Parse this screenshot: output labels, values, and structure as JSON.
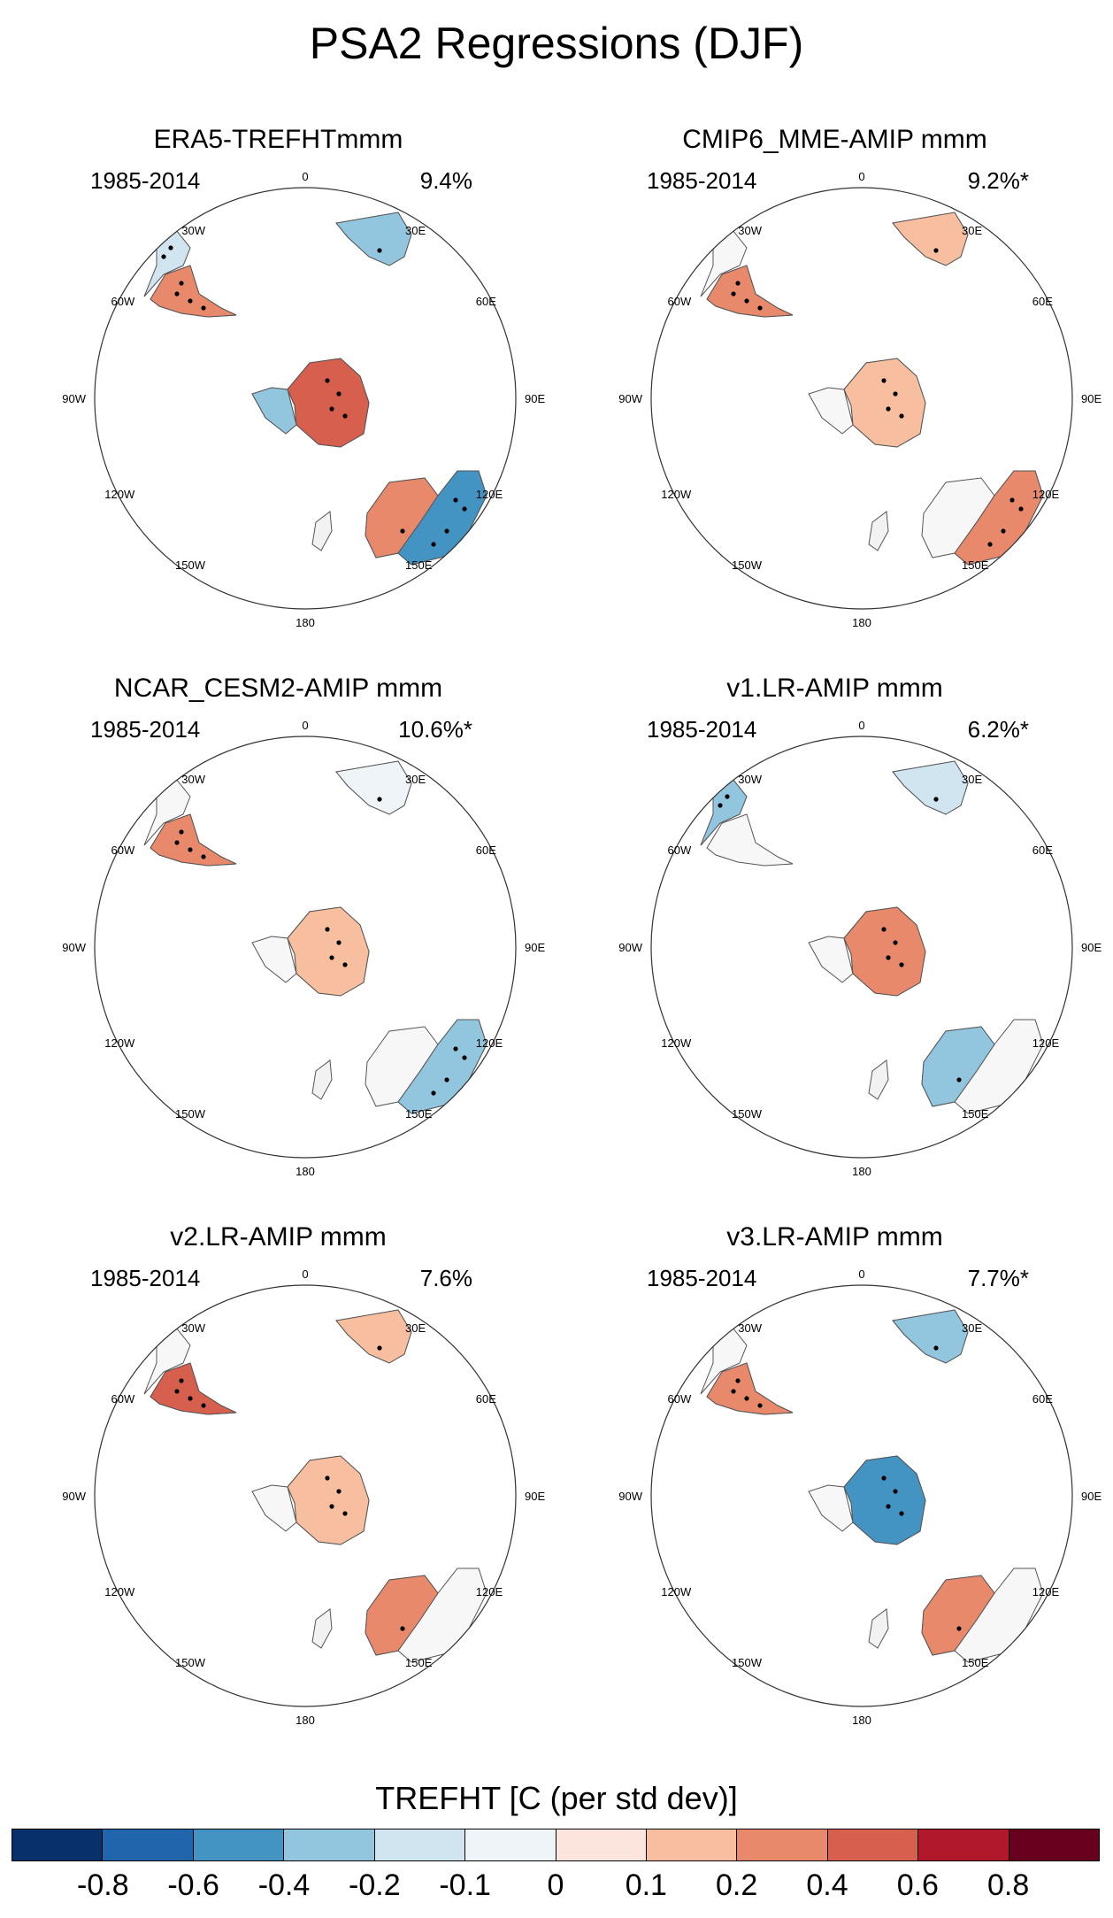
{
  "title": "PSA2 Regressions (DJF)",
  "panels": [
    {
      "title": "ERA5-TREFHTmmm",
      "period": "1985-2014",
      "variance": "9.4%",
      "anomalies": [
        {
          "region": "africa",
          "sign": -1,
          "level": 3
        },
        {
          "region": "south-america",
          "sign": -1,
          "level": 2
        },
        {
          "region": "patagonia",
          "sign": 1,
          "level": 3
        },
        {
          "region": "antarctica",
          "sign": 1,
          "level": 4
        },
        {
          "region": "antarctica-peninsula",
          "sign": -1,
          "level": 3
        },
        {
          "region": "australia-west",
          "sign": 1,
          "level": 3
        },
        {
          "region": "australia-east",
          "sign": -1,
          "level": 4
        }
      ]
    },
    {
      "title": "CMIP6_MME-AMIP  mmm",
      "period": "1985-2014",
      "variance": "9.2%*",
      "anomalies": [
        {
          "region": "africa",
          "sign": 1,
          "level": 2
        },
        {
          "region": "patagonia",
          "sign": 1,
          "level": 3
        },
        {
          "region": "antarctica",
          "sign": 1,
          "level": 2
        },
        {
          "region": "australia-east",
          "sign": 1,
          "level": 3
        }
      ]
    },
    {
      "title": "NCAR_CESM2-AMIP  mmm",
      "period": "1985-2014",
      "variance": "10.6%*",
      "anomalies": [
        {
          "region": "africa",
          "sign": -1,
          "level": 1
        },
        {
          "region": "patagonia",
          "sign": 1,
          "level": 3
        },
        {
          "region": "antarctica",
          "sign": 1,
          "level": 2
        },
        {
          "region": "australia-east",
          "sign": -1,
          "level": 3
        }
      ]
    },
    {
      "title": "v1.LR-AMIP  mmm",
      "period": "1985-2014",
      "variance": "6.2%*",
      "anomalies": [
        {
          "region": "africa",
          "sign": -1,
          "level": 2
        },
        {
          "region": "south-america",
          "sign": -1,
          "level": 3
        },
        {
          "region": "antarctica",
          "sign": 1,
          "level": 3
        },
        {
          "region": "australia-west",
          "sign": -1,
          "level": 3
        }
      ]
    },
    {
      "title": "v2.LR-AMIP  mmm",
      "period": "1985-2014",
      "variance": "7.6%",
      "anomalies": [
        {
          "region": "africa",
          "sign": 1,
          "level": 2
        },
        {
          "region": "patagonia",
          "sign": 1,
          "level": 4
        },
        {
          "region": "antarctica",
          "sign": 1,
          "level": 2
        },
        {
          "region": "australia-west",
          "sign": 1,
          "level": 3
        }
      ]
    },
    {
      "title": "v3.LR-AMIP  mmm",
      "period": "1985-2014",
      "variance": "7.7%*",
      "anomalies": [
        {
          "region": "africa",
          "sign": -1,
          "level": 3
        },
        {
          "region": "patagonia",
          "sign": 1,
          "level": 3
        },
        {
          "region": "antarctica",
          "sign": -1,
          "level": 4
        },
        {
          "region": "australia-west",
          "sign": 1,
          "level": 3
        }
      ]
    }
  ],
  "map_labels": [
    "0",
    "30E",
    "60E",
    "90E",
    "120E",
    "150E",
    "180",
    "150W",
    "120W",
    "90W",
    "60W",
    "30W"
  ],
  "colorbar": {
    "title": "TREFHT [C (per std dev)]",
    "ticks": [
      "-0.8",
      "-0.6",
      "-0.4",
      "-0.2",
      "-0.1",
      "0",
      "0.1",
      "0.2",
      "0.4",
      "0.6",
      "0.8"
    ],
    "colors": [
      "#08306b",
      "#2166ac",
      "#4393c3",
      "#92c5de",
      "#d1e5f0",
      "#eef4f7",
      "#fbe5dc",
      "#f7bfa0",
      "#e8896c",
      "#d6604d",
      "#b2182b",
      "#67001f"
    ]
  }
}
